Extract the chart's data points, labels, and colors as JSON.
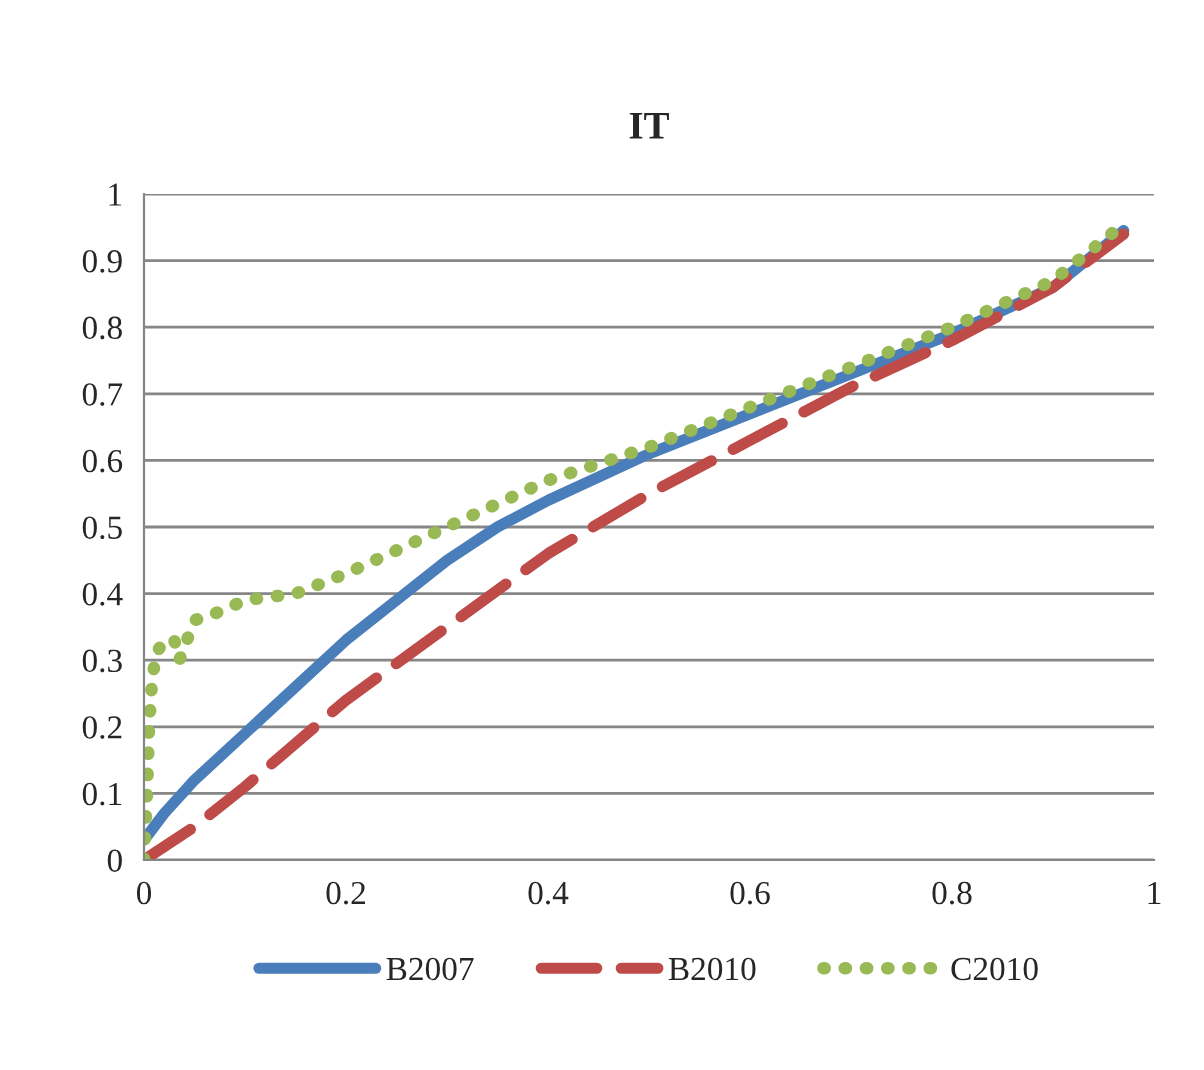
{
  "chart_data": {
    "type": "line",
    "title": "IT",
    "xlim": [
      0,
      1
    ],
    "ylim": [
      0,
      1
    ],
    "xticks": [
      0,
      0.2,
      0.4,
      0.6,
      0.8,
      1
    ],
    "yticks": [
      0,
      0.1,
      0.2,
      0.3,
      0.4,
      0.5,
      0.6,
      0.7,
      0.8,
      0.9,
      1
    ],
    "grid": "y",
    "legend": "bottom",
    "marker": "none",
    "series": [
      {
        "name": "B2007",
        "color": "#4a7ebb",
        "line_style": "solid",
        "x": [
          0,
          0.02,
          0.05,
          0.1,
          0.15,
          0.2,
          0.25,
          0.3,
          0.35,
          0.4,
          0.5,
          0.6,
          0.7,
          0.8,
          0.9,
          0.97
        ],
        "values": [
          0.03,
          0.07,
          0.12,
          0.19,
          0.26,
          0.33,
          0.39,
          0.45,
          0.5,
          0.54,
          0.61,
          0.67,
          0.73,
          0.79,
          0.86,
          0.945
        ]
      },
      {
        "name": "B2010",
        "color": "#be4b48",
        "line_style": "dashed",
        "x": [
          0,
          0.05,
          0.1,
          0.2,
          0.3,
          0.4,
          0.5,
          0.6,
          0.7,
          0.8,
          0.9,
          0.97
        ],
        "values": [
          0,
          0.05,
          0.11,
          0.24,
          0.35,
          0.46,
          0.55,
          0.63,
          0.71,
          0.78,
          0.86,
          0.94
        ]
      },
      {
        "name": "C2010",
        "color": "#98b954",
        "line_style": "dotted",
        "x": [
          0,
          0.003,
          0.005,
          0.008,
          0.012,
          0.02,
          0.03,
          0.035,
          0.04,
          0.05,
          0.07,
          0.1,
          0.15,
          0.2,
          0.3,
          0.4,
          0.5,
          0.6,
          0.7,
          0.8,
          0.9,
          0.97
        ],
        "values": [
          0,
          0.1,
          0.2,
          0.27,
          0.31,
          0.33,
          0.33,
          0.3,
          0.32,
          0.36,
          0.37,
          0.39,
          0.4,
          0.43,
          0.5,
          0.57,
          0.62,
          0.68,
          0.74,
          0.8,
          0.87,
          0.955
        ]
      }
    ]
  }
}
